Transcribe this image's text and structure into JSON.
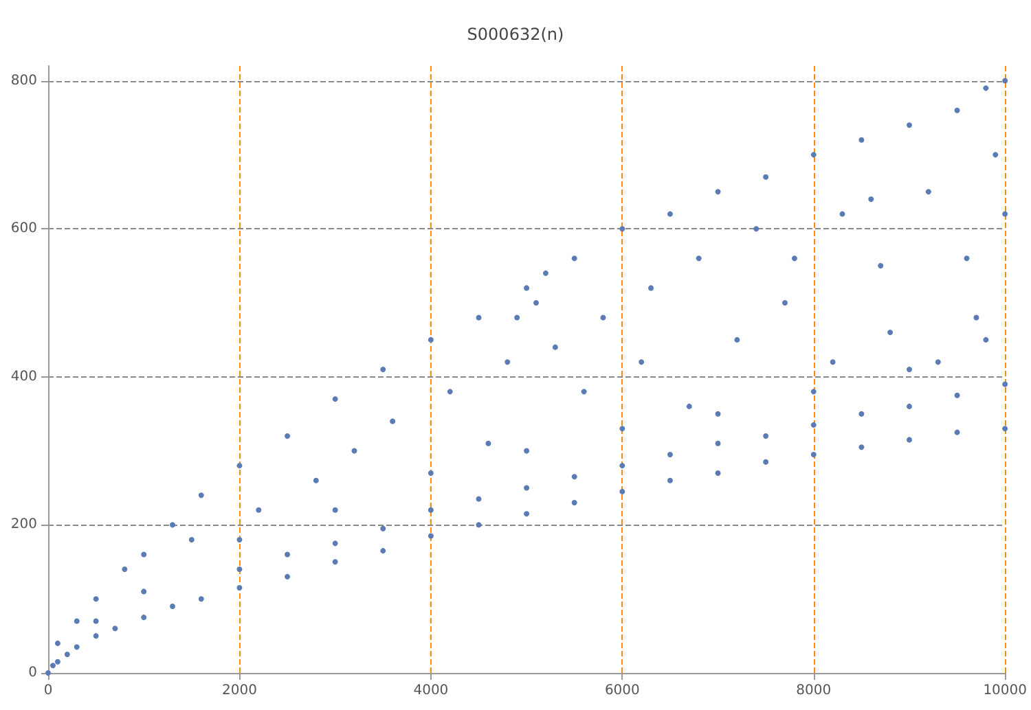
{
  "chart_data": {
    "type": "scatter",
    "title": "S000632(n)",
    "x": [
      0,
      50,
      100,
      200,
      300,
      500,
      700,
      1000,
      1300,
      1600,
      2000,
      2000,
      2500,
      2500,
      3000,
      3000,
      3500,
      3500,
      4000,
      4000,
      4500,
      4500,
      5000,
      5000,
      5500,
      5500,
      6000,
      6000,
      6500,
      6500,
      7000,
      7000,
      7500,
      7500,
      8000,
      8000,
      8500,
      8500,
      9000,
      9000,
      9500,
      9500,
      10000,
      10000,
      100,
      300,
      500,
      800,
      1000,
      1300,
      1600,
      2000,
      2500,
      3000,
      3500,
      4000,
      4500,
      5000,
      5200,
      5500,
      6000,
      6500,
      7000,
      7500,
      8000,
      8500,
      9000,
      9500,
      9800,
      10000,
      1500,
      2200,
      2800,
      3200,
      3600,
      4200,
      4600,
      4800,
      4900,
      5100,
      5300,
      5600,
      5800,
      6200,
      6300,
      6700,
      6800,
      7200,
      7400,
      7700,
      8200,
      8300,
      8700,
      8800,
      9200,
      9300,
      9600,
      9700,
      9900,
      10000,
      9000,
      8000,
      7000,
      6000,
      5000,
      4000,
      3000,
      2000,
      1000,
      500,
      9800,
      8600,
      7800
    ],
    "values": [
      0,
      10,
      15,
      25,
      35,
      50,
      60,
      75,
      90,
      100,
      115,
      140,
      130,
      160,
      150,
      175,
      165,
      195,
      185,
      220,
      200,
      235,
      215,
      250,
      230,
      265,
      245,
      280,
      260,
      295,
      270,
      310,
      285,
      320,
      295,
      335,
      305,
      350,
      315,
      360,
      325,
      375,
      330,
      390,
      40,
      70,
      100,
      140,
      160,
      200,
      240,
      280,
      320,
      370,
      410,
      450,
      480,
      520,
      540,
      560,
      600,
      620,
      650,
      670,
      700,
      720,
      740,
      760,
      790,
      800,
      180,
      220,
      260,
      300,
      340,
      380,
      310,
      420,
      480,
      500,
      440,
      380,
      480,
      420,
      520,
      360,
      560,
      450,
      600,
      500,
      420,
      620,
      550,
      460,
      650,
      420,
      560,
      480,
      700,
      620,
      410,
      380,
      350,
      330,
      300,
      270,
      220,
      180,
      110,
      70,
      450,
      640,
      560
    ],
    "color": "#5b7bb5",
    "marker": "circle",
    "xlim": [
      0,
      10000
    ],
    "xticks": [
      0,
      2000,
      4000,
      6000,
      8000,
      10000
    ],
    "ylim": [
      0,
      820
    ],
    "yticks": [
      0,
      200,
      400,
      600,
      800
    ],
    "grid": true
  }
}
